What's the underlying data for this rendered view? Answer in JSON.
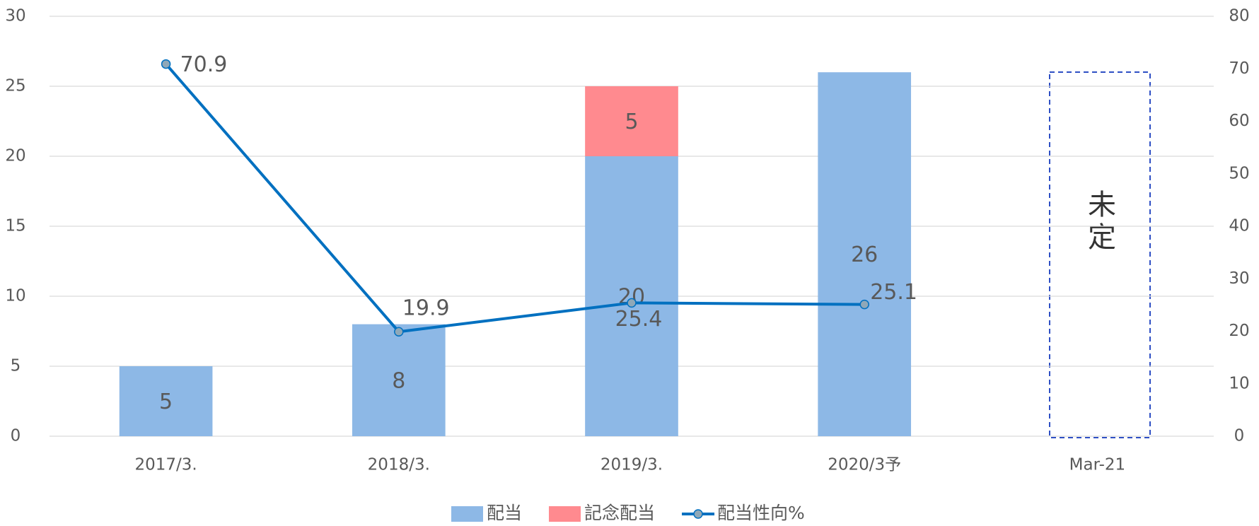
{
  "chart_data": {
    "type": "bar",
    "categories": [
      "2017/3.",
      "2018/3.",
      "2019/3.",
      "2020/3予",
      "Mar-21"
    ],
    "series": [
      {
        "name": "配当",
        "type": "bar",
        "color": "#8db8e6",
        "values": [
          5,
          8,
          20,
          26,
          null
        ]
      },
      {
        "name": "記念配当",
        "type": "bar",
        "color": "#ff8a8f",
        "values": [
          null,
          null,
          5,
          null,
          null
        ]
      },
      {
        "name": "配当性向%",
        "type": "line",
        "axis": "y2",
        "color": "#0070c0",
        "values": [
          70.9,
          19.9,
          25.4,
          25.1,
          null
        ]
      }
    ],
    "stacked": true,
    "annotation": "未定",
    "ylim": [
      0,
      30
    ],
    "yticks": [
      0,
      5,
      10,
      15,
      20,
      25,
      30
    ],
    "y2lim": [
      0,
      80
    ],
    "y2ticks": [
      0,
      10,
      20,
      30,
      40,
      50,
      60,
      70,
      80
    ],
    "grid": true,
    "legend": "bottom"
  }
}
